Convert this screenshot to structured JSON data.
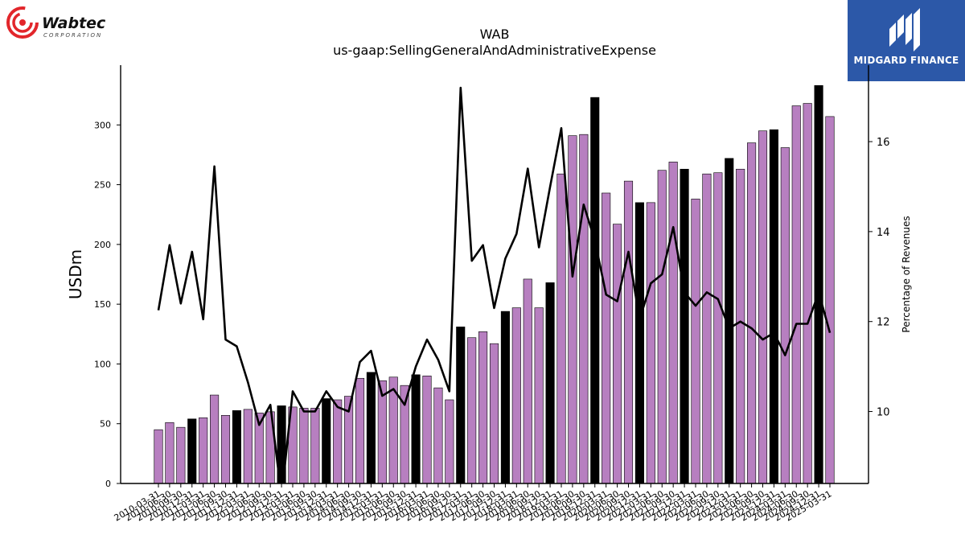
{
  "brand_left": {
    "name": "Wabtec",
    "sub": "CORPORATION",
    "color": "#e2262b"
  },
  "brand_right": {
    "name": "MIDGARD FINANCE",
    "color": "#2c58a8"
  },
  "chart_data": {
    "type": "bar",
    "title": "WAB",
    "subtitle": "us-gaap:SellingGeneralAndAdministrativeExpense",
    "ylabel": "USDm",
    "y2label": "Percentage of Revenues",
    "ylim": [
      0,
      350
    ],
    "y2lim": [
      8.4,
      17.7
    ],
    "yticks": [
      0,
      50,
      100,
      150,
      200,
      250,
      300
    ],
    "y2ticks": [
      10,
      12,
      14,
      16
    ],
    "bar_color": "#b77fc0",
    "q4_bar_color": "#000000",
    "line_color": "#000000",
    "categories": [
      "2010-03-31",
      "2010-06-30",
      "2010-09-30",
      "2010-12-31",
      "2011-03-31",
      "2011-06-30",
      "2011-09-30",
      "2011-12-31",
      "2012-03-31",
      "2012-06-30",
      "2012-09-30",
      "2012-12-31",
      "2013-03-31",
      "2013-06-30",
      "2013-09-30",
      "2013-12-31",
      "2014-03-31",
      "2014-06-30",
      "2014-09-30",
      "2014-12-31",
      "2015-03-31",
      "2015-06-30",
      "2015-09-30",
      "2015-12-31",
      "2016-03-31",
      "2016-06-30",
      "2016-09-30",
      "2016-12-31",
      "2017-03-31",
      "2017-06-30",
      "2017-09-30",
      "2017-12-31",
      "2018-03-31",
      "2018-06-30",
      "2018-09-30",
      "2018-12-31",
      "2019-03-31",
      "2019-06-30",
      "2019-09-30",
      "2019-12-31",
      "2020-03-31",
      "2020-06-30",
      "2020-09-30",
      "2020-12-31",
      "2021-03-31",
      "2021-06-30",
      "2021-09-30",
      "2021-12-31",
      "2022-03-31",
      "2022-06-30",
      "2022-09-30",
      "2022-12-31",
      "2023-03-31",
      "2023-06-30",
      "2023-09-30",
      "2023-12-31",
      "2024-03-31",
      "2024-06-30",
      "2024-09-30",
      "2024-12-31",
      "2025-03-31"
    ],
    "series": [
      {
        "type": "bar",
        "values": [
          45,
          51,
          47,
          54,
          55,
          74,
          57,
          61,
          62,
          59,
          60,
          65,
          64,
          63,
          63,
          71,
          70,
          73,
          88,
          93,
          86,
          89,
          82,
          91,
          90,
          80,
          70,
          131,
          122,
          127,
          117,
          144,
          147,
          171,
          147,
          168,
          259,
          291,
          292,
          323,
          243,
          217,
          253,
          235,
          235,
          262,
          269,
          263,
          238,
          259,
          260,
          272,
          263,
          285,
          295,
          296,
          281,
          316,
          318,
          333,
          307
        ],
        "highlight": [
          false,
          false,
          false,
          true,
          false,
          false,
          false,
          true,
          false,
          false,
          false,
          true,
          false,
          false,
          false,
          true,
          false,
          false,
          false,
          true,
          false,
          false,
          false,
          true,
          false,
          false,
          false,
          true,
          false,
          false,
          false,
          true,
          false,
          false,
          false,
          true,
          false,
          false,
          false,
          true,
          false,
          false,
          false,
          true,
          false,
          false,
          false,
          true,
          false,
          false,
          false,
          true,
          false,
          false,
          false,
          true,
          false,
          false,
          false,
          true,
          false
        ]
      },
      {
        "type": "line",
        "axis": "right",
        "values": [
          12.25,
          13.7,
          12.4,
          13.55,
          12.05,
          15.45,
          11.6,
          11.45,
          10.65,
          9.7,
          10.15,
          8.1,
          10.45,
          10.0,
          10.0,
          10.45,
          10.1,
          10.0,
          11.1,
          11.35,
          10.35,
          10.5,
          10.15,
          11.0,
          11.6,
          11.15,
          10.45,
          17.2,
          13.35,
          13.7,
          12.3,
          13.4,
          13.95,
          15.4,
          13.65,
          15.0,
          16.3,
          13.0,
          14.6,
          13.8,
          12.6,
          12.45,
          13.55,
          12.05,
          12.85,
          13.05,
          14.1,
          12.65,
          12.35,
          12.65,
          12.5,
          11.85,
          12.0,
          11.85,
          11.6,
          11.75,
          11.25,
          11.95,
          11.95,
          12.65,
          11.75
        ]
      }
    ]
  }
}
